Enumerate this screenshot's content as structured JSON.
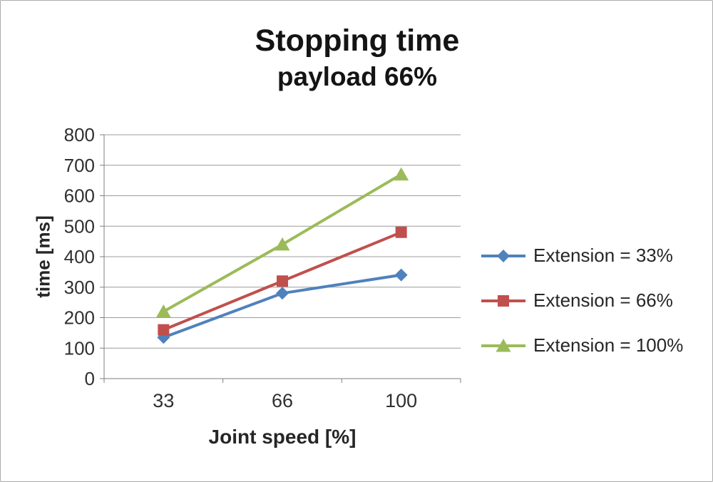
{
  "chart_data": {
    "type": "line",
    "title": "Stopping time",
    "subtitle": "payload 66%",
    "xlabel": "Joint speed [%]",
    "ylabel": "time [ms]",
    "categories": [
      "33",
      "66",
      "100"
    ],
    "series": [
      {
        "name": "Extension = 33%",
        "values": [
          135,
          280,
          340
        ],
        "color": "#4F81BD",
        "marker": "diamond"
      },
      {
        "name": "Extension = 66%",
        "values": [
          160,
          320,
          480
        ],
        "color": "#C0504D",
        "marker": "square"
      },
      {
        "name": "Extension = 100%",
        "values": [
          220,
          440,
          670
        ],
        "color": "#9BBB59",
        "marker": "triangle"
      }
    ],
    "ylim": [
      0,
      800
    ],
    "ytick_step": 100,
    "grid": true,
    "legend_position": "right",
    "gridline_color": "#9c9c9c",
    "axis_color": "#7f7f7f",
    "tick_label_color": "#303030"
  }
}
